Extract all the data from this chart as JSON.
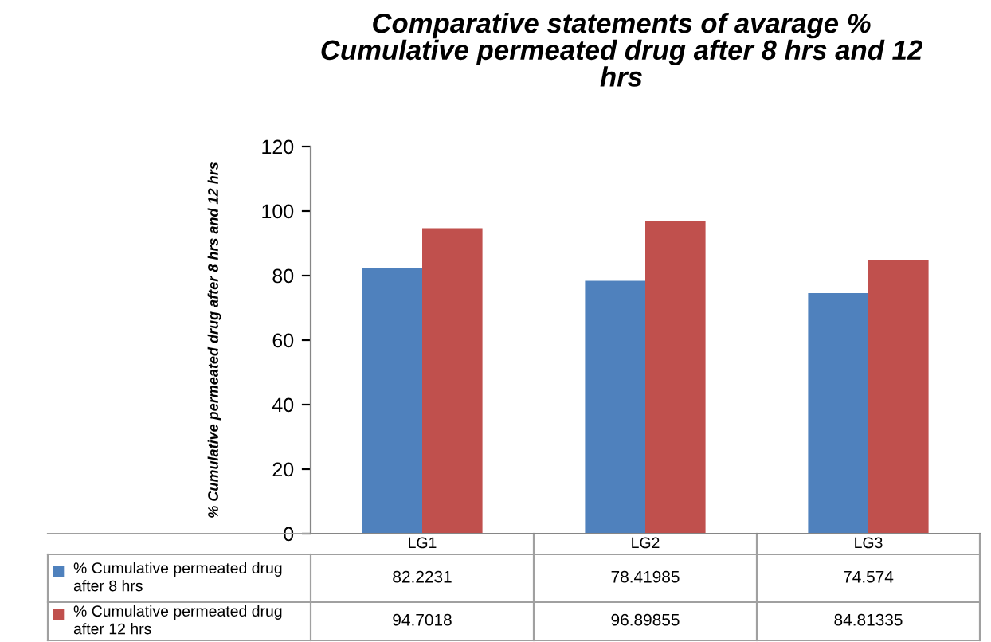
{
  "chart_data": {
    "type": "bar",
    "title": "Comparative statements of avarage % Cumulative permeated drug after 8 hrs and 12 hrs",
    "ylabel": "% Cumulative permeated drug after 8 hrs and 12 hrs",
    "categories": [
      "LG1",
      "LG2",
      "LG3"
    ],
    "series": [
      {
        "name": "% Cumulative permeated drug after 8 hrs",
        "color": "#4f81bd",
        "values": [
          82.2231,
          78.41985,
          74.574
        ]
      },
      {
        "name": "% Cumulative permeated drug after 12 hrs",
        "color": "#c0504d",
        "values": [
          94.7018,
          96.89855,
          84.81335
        ]
      }
    ],
    "ylim": [
      0,
      120
    ],
    "yticks": [
      0,
      20,
      40,
      60,
      80,
      100,
      120
    ],
    "grid": false,
    "legend": "bottom",
    "data_labels": true
  }
}
